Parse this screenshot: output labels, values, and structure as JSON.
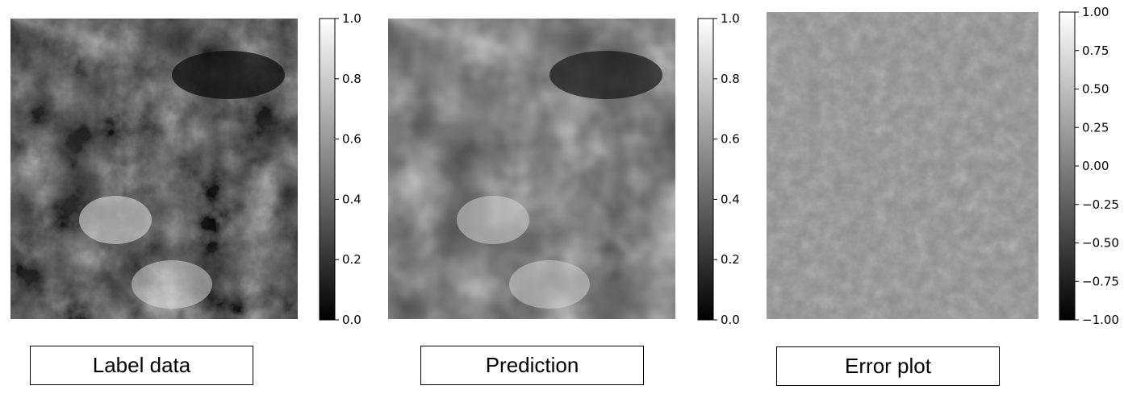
{
  "chart_data": [
    {
      "type": "heatmap",
      "caption": "Label data",
      "colormap": "gray",
      "colorbar": {
        "min": 0.0,
        "max": 1.0,
        "ticks": [
          "0.0",
          "0.2",
          "0.4",
          "0.6",
          "0.8",
          "1.0"
        ]
      }
    },
    {
      "type": "heatmap",
      "caption": "Prediction",
      "colormap": "gray",
      "colorbar": {
        "min": 0.0,
        "max": 1.0,
        "ticks": [
          "0.0",
          "0.2",
          "0.4",
          "0.6",
          "0.8",
          "1.0"
        ]
      }
    },
    {
      "type": "heatmap",
      "caption": "Error plot",
      "colormap": "gray",
      "colorbar": {
        "min": -1.0,
        "max": 1.0,
        "ticks": [
          "−1.00",
          "−0.75",
          "−0.50",
          "−0.25",
          "0.00",
          "0.25",
          "0.50",
          "0.75",
          "1.00"
        ]
      }
    }
  ]
}
